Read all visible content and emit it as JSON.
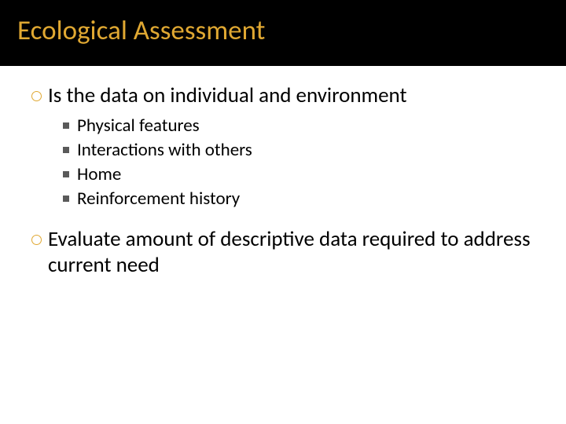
{
  "slide": {
    "title": "Ecological Assessment",
    "title_color": "#e0a832",
    "title_bg": "#000000",
    "title_fontsize": 35,
    "body_bg": "#ffffff",
    "point1": "Is the data on individual and environment",
    "sub1": "Physical features",
    "sub2": "Interactions with others",
    "sub3": "Home",
    "sub4": "Reinforcement history",
    "point2": "Evaluate amount of descriptive data required to address current need",
    "circle_bullet_color": "#e0a832",
    "square_bullet_color": "#5a5a5a",
    "main_fontsize": 27,
    "sub_fontsize": 23
  }
}
